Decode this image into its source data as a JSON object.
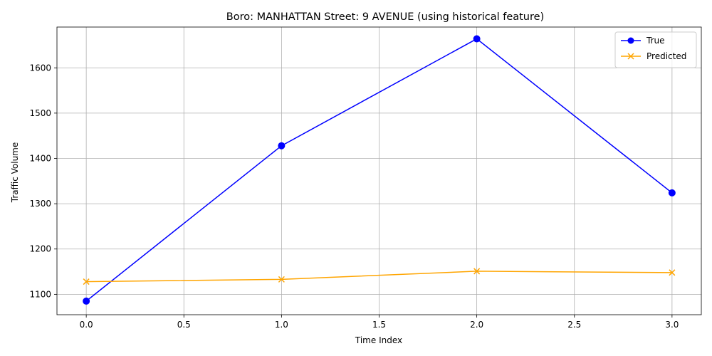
{
  "chart_data": {
    "type": "line",
    "title": "Boro: MANHATTAN Street: 9 AVENUE (using historical feature)",
    "xlabel": "Time Index",
    "ylabel": "Traffic Volume",
    "xlim": [
      -0.15,
      3.15
    ],
    "ylim": [
      1055,
      1690
    ],
    "xticks": [
      0.0,
      0.5,
      1.0,
      1.5,
      2.0,
      2.5,
      3.0
    ],
    "xtick_labels": [
      "0.0",
      "0.5",
      "1.0",
      "1.5",
      "2.0",
      "2.5",
      "3.0"
    ],
    "yticks": [
      1100,
      1200,
      1300,
      1400,
      1500,
      1600
    ],
    "ytick_labels": [
      "1100",
      "1200",
      "1300",
      "1400",
      "1500",
      "1600"
    ],
    "grid": true,
    "legend_position": "top-right",
    "x": [
      0,
      1,
      2,
      3
    ],
    "series": [
      {
        "name": "True",
        "values": [
          1085,
          1428,
          1664,
          1324
        ],
        "color": "#0000ff",
        "marker": "circle"
      },
      {
        "name": "Predicted",
        "values": [
          1128,
          1133,
          1151,
          1148
        ],
        "color": "#ffa500",
        "marker": "x"
      }
    ]
  }
}
